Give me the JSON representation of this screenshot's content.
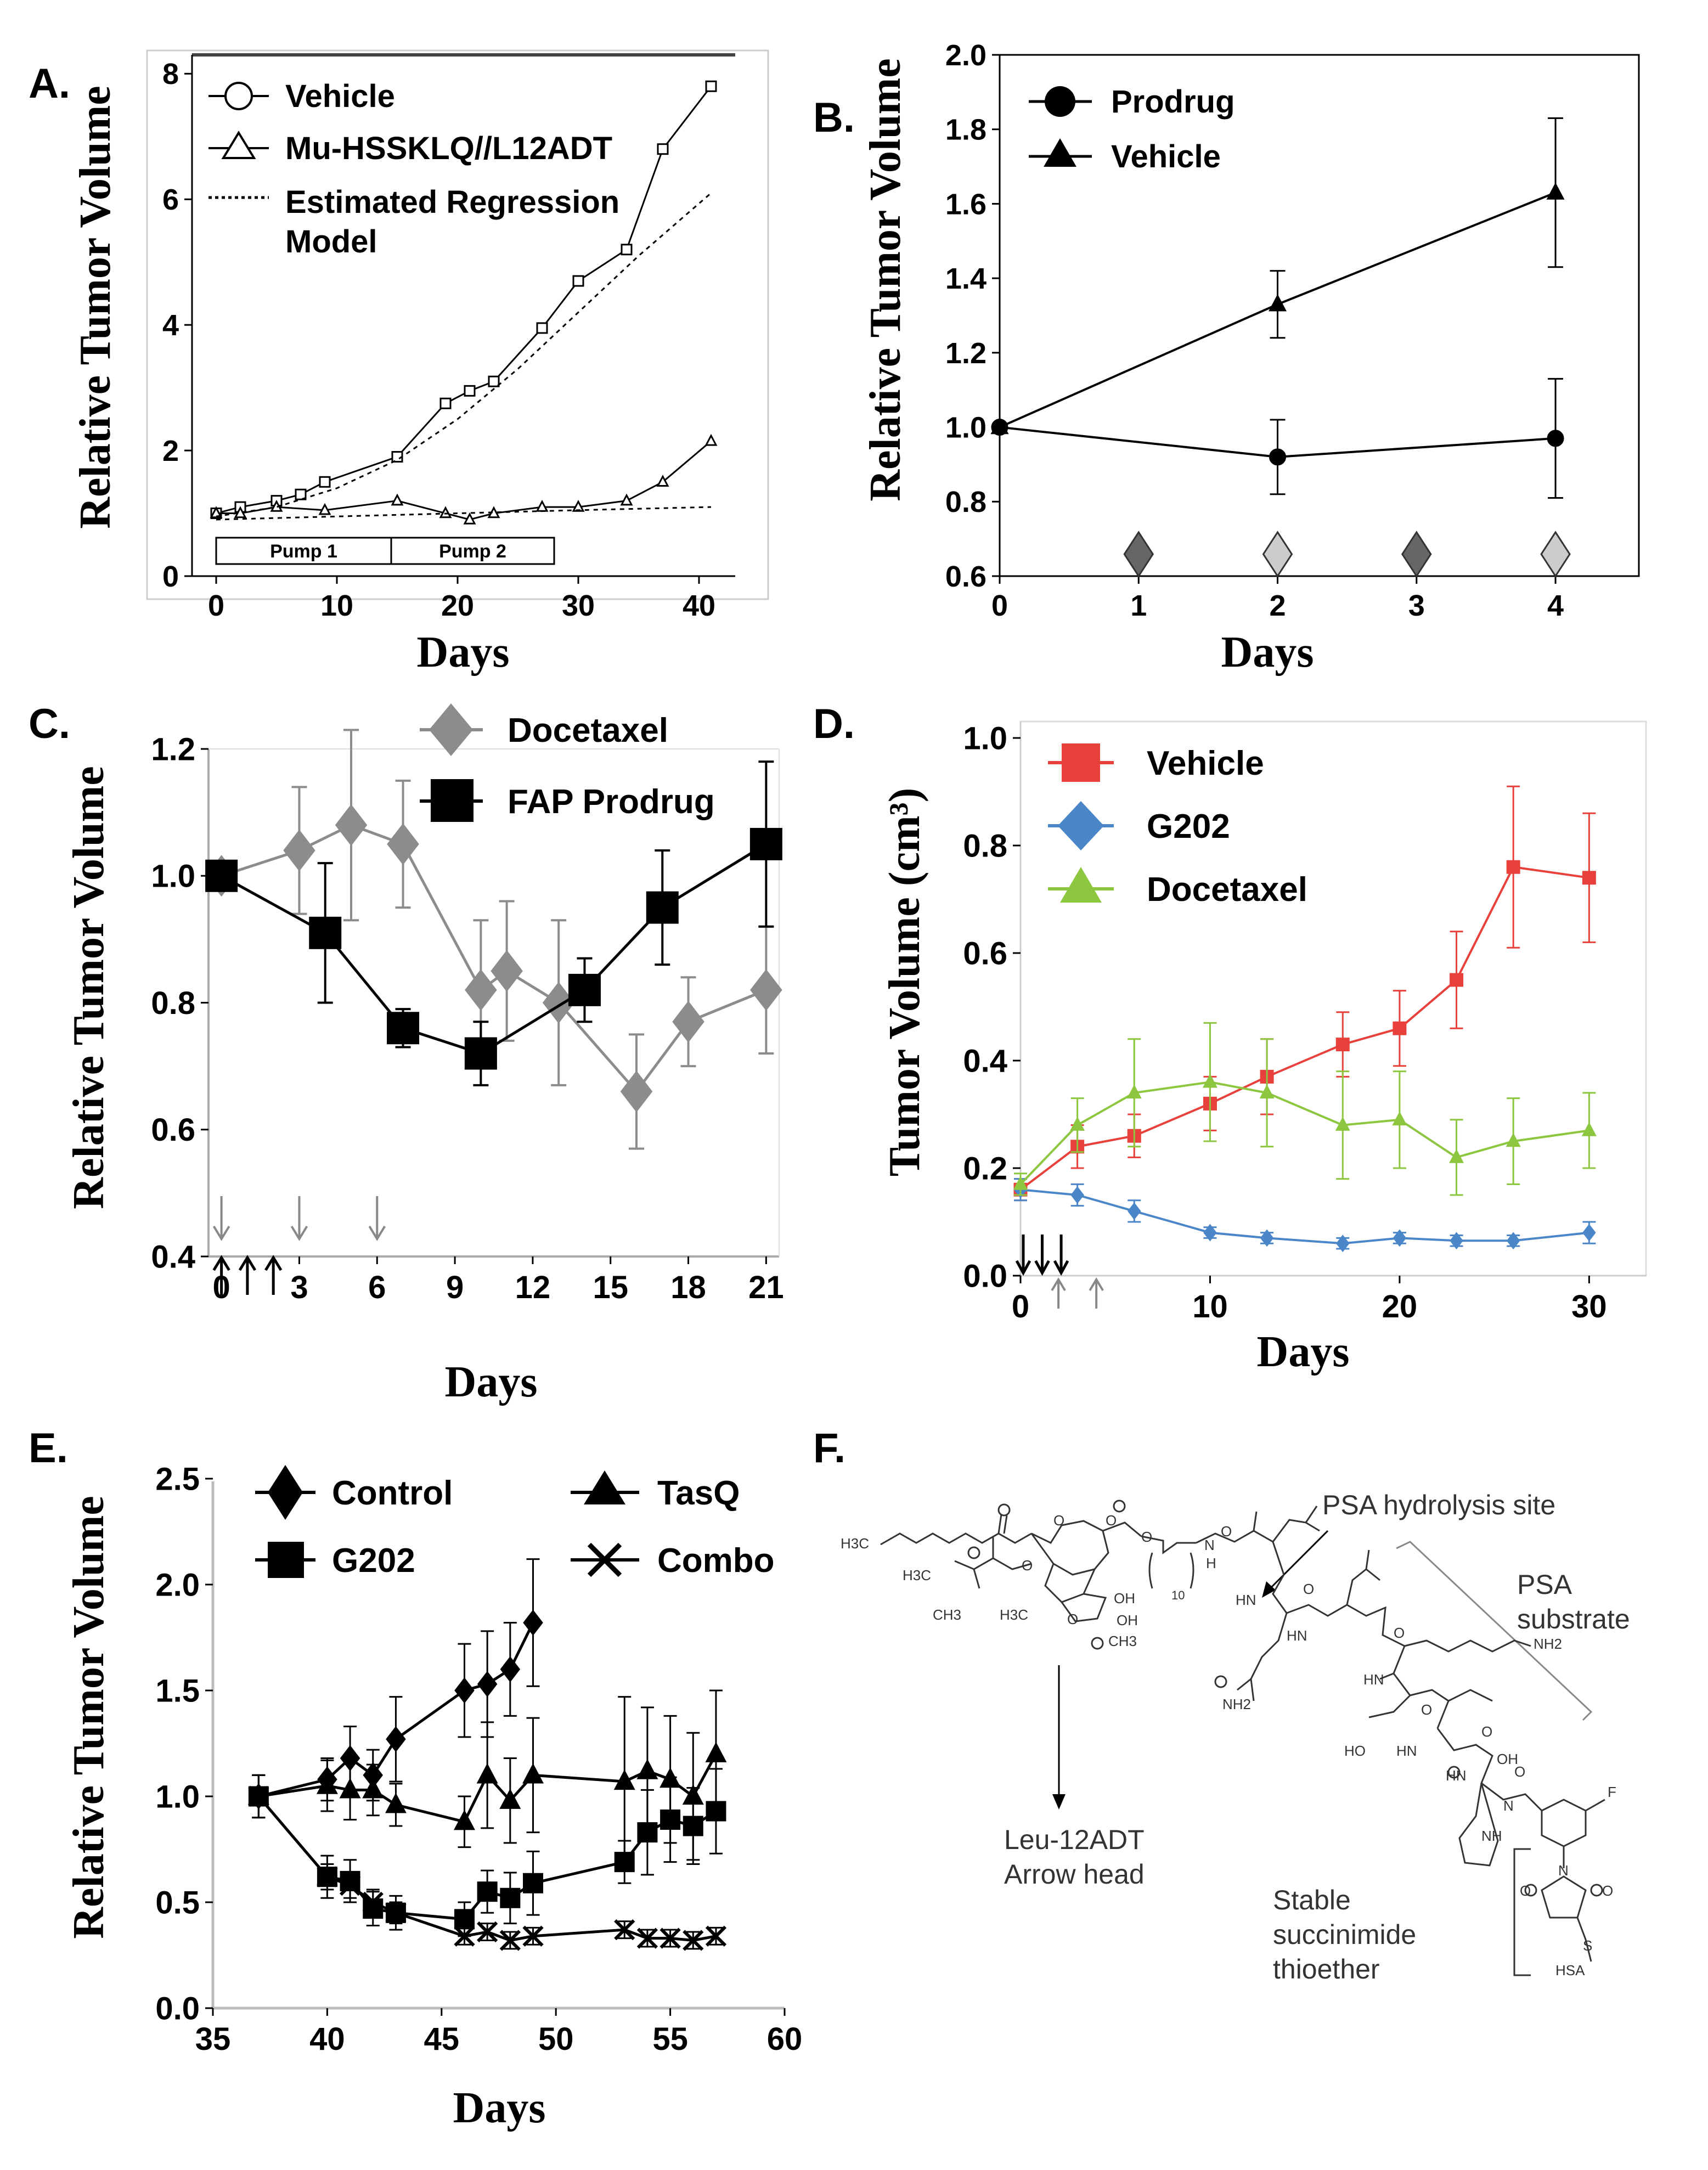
{
  "figure": {
    "panel_letters": [
      "A.",
      "B.",
      "C.",
      "D.",
      "E.",
      "F."
    ]
  },
  "chart_data": [
    {
      "panel": "A.",
      "type": "line",
      "xlabel": "Days",
      "ylabel": "Relative Tumor Volume",
      "xlim": [
        -2,
        43
      ],
      "ylim": [
        0,
        8.3
      ],
      "xticks": [
        "0",
        "10",
        "20",
        "30",
        "40"
      ],
      "yticks": [
        "0",
        "2",
        "4",
        "6",
        "8"
      ],
      "legend": [
        "Vehicle",
        "Mu-HSSKLQ//L12ADT",
        "Estimated Regression",
        "Model"
      ],
      "pumps": [
        "Pump 1",
        "Pump 2"
      ],
      "pump_ranges": [
        [
          0,
          14.5
        ],
        [
          14.5,
          28
        ]
      ],
      "series": [
        {
          "name": "Vehicle",
          "marker": "square-open",
          "x": [
            0,
            2,
            5,
            7,
            9,
            15,
            19,
            21,
            23,
            27,
            30,
            34,
            37,
            41
          ],
          "y": [
            1.0,
            1.1,
            1.2,
            1.3,
            1.5,
            1.9,
            2.75,
            2.95,
            3.1,
            3.95,
            4.7,
            5.2,
            6.8,
            7.8
          ]
        },
        {
          "name": "Mu-HSSKLQ//L12ADT",
          "marker": "triangle-open",
          "x": [
            0,
            2,
            5,
            9,
            15,
            19,
            21,
            23,
            27,
            30,
            34,
            37,
            41
          ],
          "y": [
            1.0,
            1.0,
            1.1,
            1.05,
            1.2,
            1.0,
            0.9,
            1.0,
            1.1,
            1.1,
            1.2,
            1.5,
            2.15
          ]
        },
        {
          "name": "Estimated Regression Model (Vehicle)",
          "dashed": true,
          "x": [
            0,
            5,
            10,
            15,
            20,
            25,
            30,
            35,
            41
          ],
          "y": [
            0.95,
            1.1,
            1.4,
            1.85,
            2.5,
            3.3,
            4.2,
            5.1,
            6.1
          ]
        },
        {
          "name": "Estimated Regression Model (Treated)",
          "dashed": true,
          "x": [
            0,
            10,
            20,
            30,
            41
          ],
          "y": [
            0.9,
            0.95,
            1.0,
            1.05,
            1.1
          ]
        }
      ]
    },
    {
      "panel": "B.",
      "type": "line",
      "xlabel": "Days",
      "ylabel": "Relative Tumor Volume",
      "xlim": [
        0,
        4.6
      ],
      "ylim": [
        0.6,
        2.0
      ],
      "xticks": [
        "0",
        "1",
        "2",
        "3",
        "4"
      ],
      "yticks": [
        "0.6",
        "0.8",
        "1.0",
        "1.2",
        "1.4",
        "1.6",
        "1.8",
        "2.0"
      ],
      "legend": [
        "Prodrug",
        "Vehicle"
      ],
      "series": [
        {
          "name": "Prodrug",
          "marker": "circle",
          "x": [
            0,
            2,
            4
          ],
          "y": [
            1.0,
            0.92,
            0.97
          ],
          "err": [
            0,
            0.1,
            0.16
          ]
        },
        {
          "name": "Vehicle",
          "marker": "triangle",
          "x": [
            0,
            2,
            4
          ],
          "y": [
            1.0,
            1.33,
            1.63
          ],
          "err": [
            0,
            0.09,
            0.2
          ]
        }
      ],
      "dose_markers": [
        {
          "x": 1,
          "shade": "dark"
        },
        {
          "x": 2,
          "shade": "light"
        },
        {
          "x": 3,
          "shade": "dark"
        },
        {
          "x": 4,
          "shade": "light"
        }
      ]
    },
    {
      "panel": "C.",
      "type": "line",
      "xlabel": "Days",
      "ylabel": "Relative Tumor Volume",
      "xlim": [
        -0.5,
        21.5
      ],
      "ylim": [
        0.4,
        1.2
      ],
      "xticks": [
        "0",
        "3",
        "6",
        "9",
        "12",
        "15",
        "18",
        "21"
      ],
      "yticks": [
        "0.4",
        "0.6",
        "0.8",
        "1.0",
        "1.2"
      ],
      "legend": [
        "Docetaxel",
        "FAP Prodrug"
      ],
      "series": [
        {
          "name": "Docetaxel",
          "marker": "diamond",
          "color": "#8c8c8c",
          "x": [
            0,
            3,
            5,
            7,
            10,
            11,
            13,
            16,
            18,
            21
          ],
          "y": [
            1.0,
            1.04,
            1.08,
            1.05,
            0.82,
            0.85,
            0.8,
            0.66,
            0.77,
            0.82
          ],
          "err": [
            0,
            0.1,
            0.15,
            0.1,
            0.11,
            0.11,
            0.13,
            0.09,
            0.07,
            0.1
          ]
        },
        {
          "name": "FAP Prodrug",
          "marker": "square",
          "color": "#000000",
          "x": [
            0,
            4,
            7,
            10,
            14,
            17,
            21
          ],
          "y": [
            1.0,
            0.91,
            0.76,
            0.72,
            0.82,
            0.95,
            1.05
          ],
          "err": [
            0,
            0.11,
            0.03,
            0.05,
            0.05,
            0.09,
            0.13
          ]
        }
      ],
      "arrows_docetaxel": [
        0,
        3,
        6
      ],
      "arrows_prodrug": [
        0,
        1,
        2
      ]
    },
    {
      "panel": "D.",
      "type": "line",
      "xlabel": "Days",
      "ylabel": "Tumor Volume (cm³)",
      "xlim": [
        0,
        33
      ],
      "ylim": [
        0.0,
        1.0
      ],
      "xticks": [
        "0",
        "10",
        "20",
        "30"
      ],
      "yticks": [
        "0.0",
        "0.2",
        "0.4",
        "0.6",
        "0.8",
        "1.0"
      ],
      "legend": [
        "Vehicle",
        "G202",
        "Docetaxel"
      ],
      "series": [
        {
          "name": "Vehicle",
          "marker": "square",
          "color": "#e8413c",
          "x": [
            0,
            3,
            6,
            10,
            13,
            17,
            20,
            23,
            26,
            30
          ],
          "y": [
            0.16,
            0.24,
            0.26,
            0.32,
            0.37,
            0.43,
            0.46,
            0.55,
            0.76,
            0.74
          ],
          "err": [
            0.02,
            0.04,
            0.04,
            0.05,
            0.07,
            0.06,
            0.07,
            0.09,
            0.15,
            0.12
          ]
        },
        {
          "name": "G202",
          "marker": "diamond",
          "color": "#4a86c8",
          "x": [
            0,
            3,
            6,
            10,
            13,
            17,
            20,
            23,
            26,
            30
          ],
          "y": [
            0.16,
            0.15,
            0.12,
            0.08,
            0.07,
            0.06,
            0.07,
            0.065,
            0.065,
            0.08
          ],
          "err": [
            0.02,
            0.02,
            0.02,
            0.01,
            0.01,
            0.01,
            0.01,
            0.01,
            0.01,
            0.02
          ]
        },
        {
          "name": "Docetaxel",
          "marker": "triangle",
          "color": "#8dc63f",
          "x": [
            0,
            3,
            6,
            10,
            13,
            17,
            20,
            23,
            26,
            30
          ],
          "y": [
            0.17,
            0.28,
            0.34,
            0.36,
            0.34,
            0.28,
            0.29,
            0.22,
            0.25,
            0.27
          ],
          "err": [
            0.02,
            0.05,
            0.1,
            0.11,
            0.1,
            0.1,
            0.09,
            0.07,
            0.08,
            0.07
          ]
        }
      ],
      "arrows_black": [
        0,
        1,
        2
      ],
      "arrows_gray": [
        2,
        4
      ]
    },
    {
      "panel": "E.",
      "type": "line",
      "xlabel": "Days",
      "ylabel": "Relative Tumor Volume",
      "xlim": [
        35,
        60
      ],
      "ylim": [
        0.0,
        2.5
      ],
      "xticks": [
        "35",
        "40",
        "45",
        "50",
        "55",
        "60"
      ],
      "yticks": [
        "0.0",
        "0.5",
        "1.0",
        "1.5",
        "2.0",
        "2.5"
      ],
      "legend": [
        "Control",
        "TasQ",
        "G202",
        "Combo"
      ],
      "series": [
        {
          "name": "Control",
          "marker": "diamond",
          "x": [
            37,
            40,
            41,
            42,
            43,
            46,
            47,
            48,
            49
          ],
          "y": [
            1.0,
            1.08,
            1.18,
            1.1,
            1.27,
            1.5,
            1.53,
            1.6,
            1.82
          ],
          "err": [
            0.1,
            0.1,
            0.15,
            0.12,
            0.2,
            0.22,
            0.25,
            0.22,
            0.3
          ]
        },
        {
          "name": "TasQ",
          "marker": "triangle",
          "x": [
            37,
            40,
            41,
            42,
            43,
            46,
            47,
            48,
            49,
            53,
            54,
            55,
            56,
            57
          ],
          "y": [
            1.0,
            1.05,
            1.03,
            1.03,
            0.96,
            0.88,
            1.1,
            0.98,
            1.1,
            1.07,
            1.12,
            1.08,
            1.0,
            1.2
          ],
          "err": [
            0.1,
            0.12,
            0.14,
            0.12,
            0.1,
            0.12,
            0.25,
            0.2,
            0.27,
            0.4,
            0.3,
            0.3,
            0.3,
            0.3
          ]
        },
        {
          "name": "G202",
          "marker": "square",
          "x": [
            37,
            40,
            41,
            42,
            43,
            46,
            47,
            48,
            49,
            53,
            54,
            55,
            56,
            57
          ],
          "y": [
            1.0,
            0.62,
            0.6,
            0.47,
            0.45,
            0.42,
            0.55,
            0.52,
            0.59,
            0.69,
            0.83,
            0.89,
            0.86,
            0.93
          ],
          "err": [
            0.1,
            0.1,
            0.1,
            0.08,
            0.08,
            0.08,
            0.1,
            0.12,
            0.15,
            0.1,
            0.2,
            0.2,
            0.18,
            0.2
          ]
        },
        {
          "name": "Combo",
          "marker": "x",
          "x": [
            37,
            40,
            41,
            42,
            43,
            46,
            47,
            48,
            49,
            53,
            54,
            55,
            56,
            57
          ],
          "y": [
            1.0,
            0.62,
            0.58,
            0.5,
            0.45,
            0.34,
            0.36,
            0.32,
            0.34,
            0.37,
            0.33,
            0.33,
            0.32,
            0.34
          ],
          "err": [
            0.1,
            0.06,
            0.06,
            0.06,
            0.05,
            0.04,
            0.04,
            0.04,
            0.04,
            0.04,
            0.04,
            0.04,
            0.04,
            0.04
          ]
        }
      ]
    }
  ],
  "panel_f": {
    "letter": "F.",
    "psa_hydrolysis": "PSA hydrolysis site",
    "psa_substrate": [
      "PSA",
      "substrate"
    ],
    "leu_label": [
      "Leu-12ADT",
      "Arrow head"
    ],
    "stable_label": [
      "Stable",
      "succinimide",
      "thioether"
    ],
    "atoms": [
      "H3C",
      "H3C",
      "CH3",
      "H3C",
      "O",
      "O",
      "O",
      "O",
      "O",
      "OH",
      "OH",
      "CH3",
      "10",
      "N",
      "H",
      "HN",
      "HN",
      "O",
      "O",
      "NH2",
      "HN",
      "O",
      "O",
      "NH2",
      "HO",
      "HN",
      "OH",
      "HN",
      "O",
      "O",
      "N",
      "NH",
      "F",
      "N",
      "O",
      "O",
      "S",
      "HSA"
    ]
  }
}
